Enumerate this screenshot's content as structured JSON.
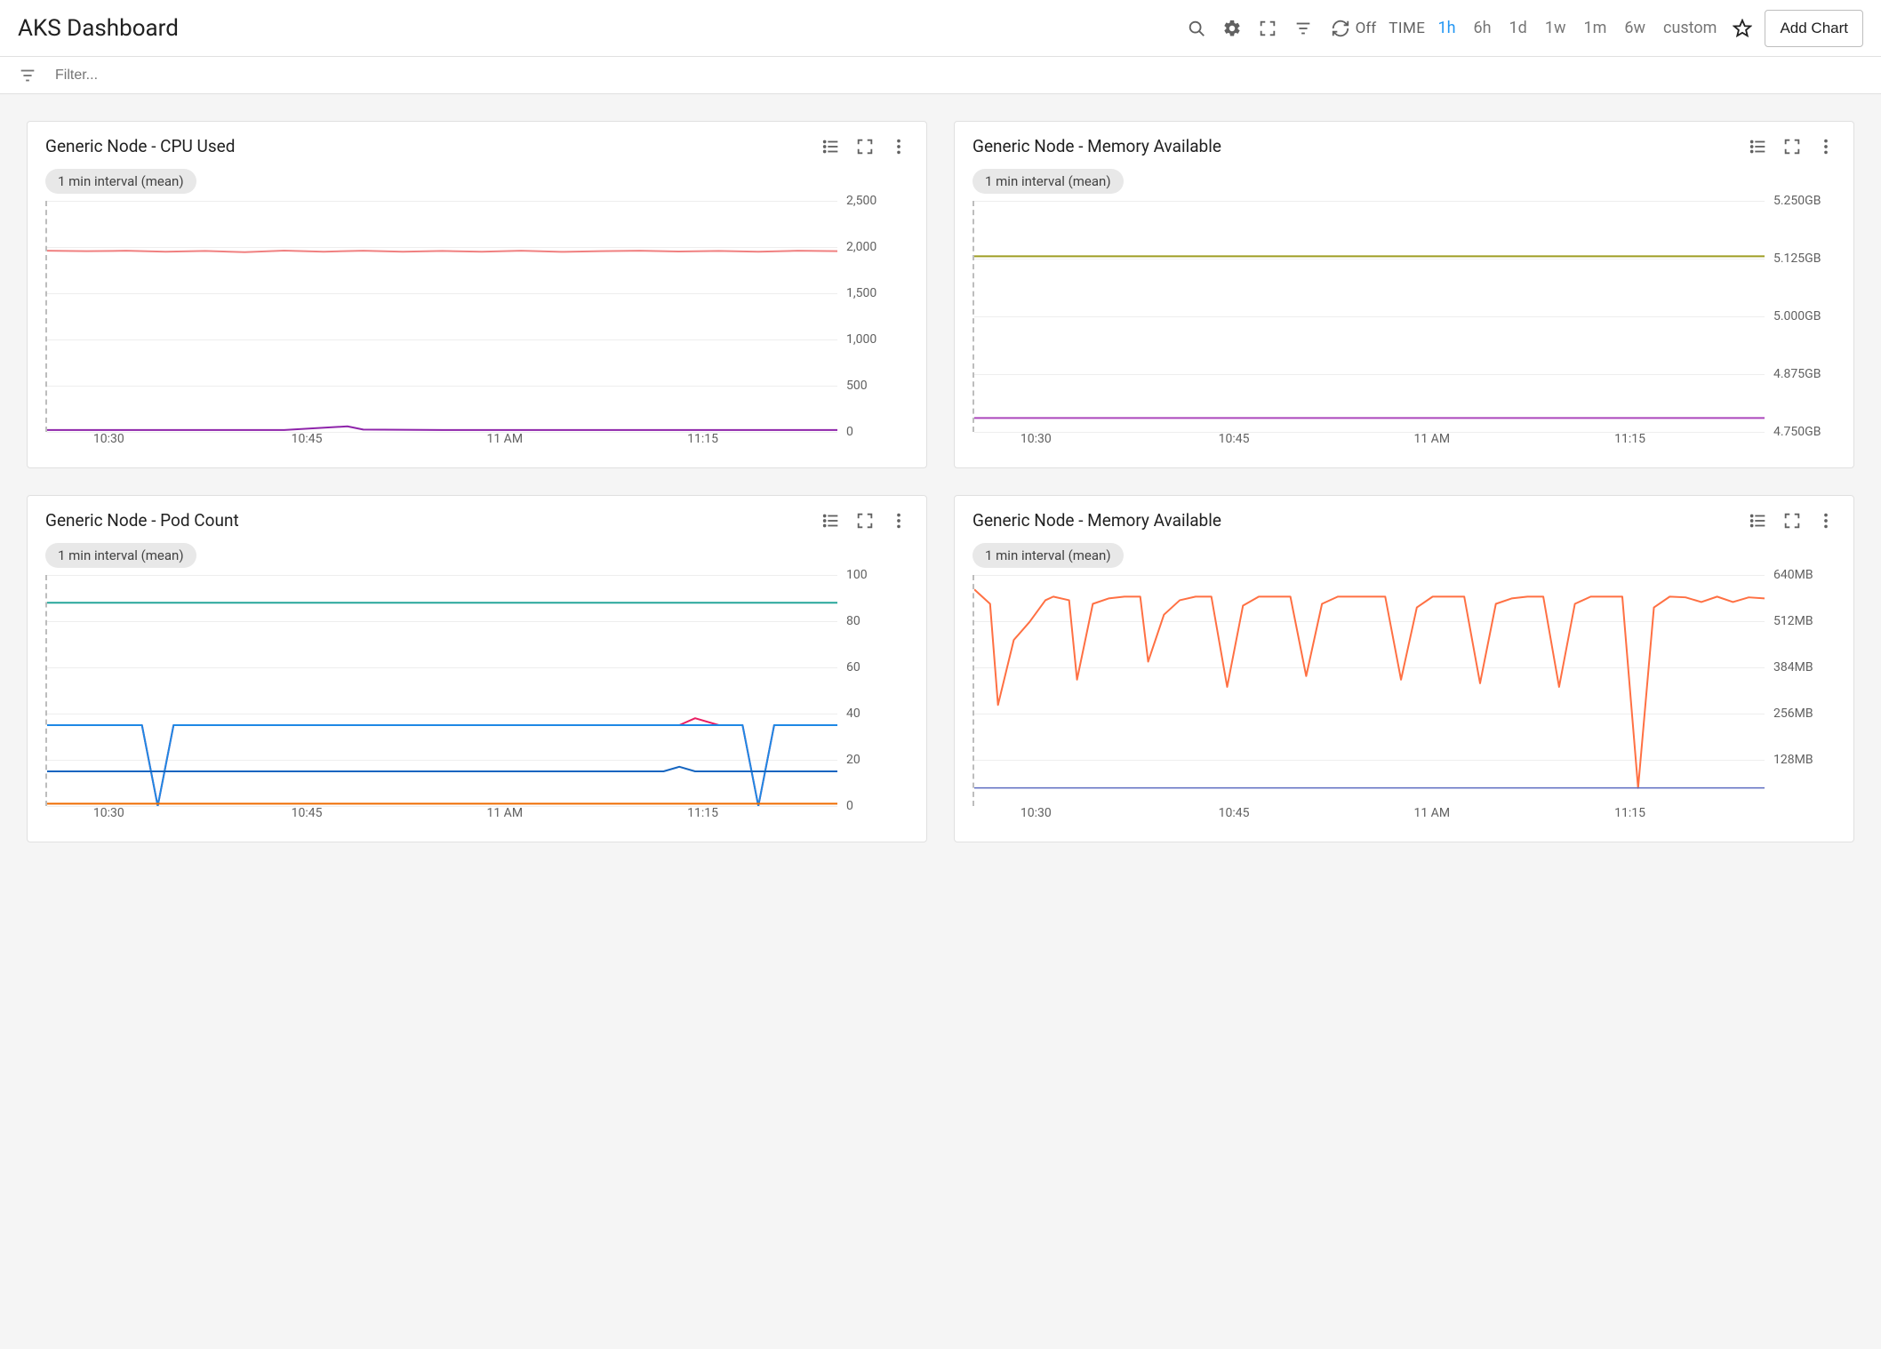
{
  "header": {
    "title": "AKS Dashboard",
    "refresh_label": "Off",
    "time_label": "TIME",
    "time_ranges": [
      "1h",
      "6h",
      "1d",
      "1w",
      "1m",
      "6w",
      "custom"
    ],
    "time_active": "1h",
    "add_chart_label": "Add Chart"
  },
  "filter": {
    "placeholder": "Filter..."
  },
  "interval_pill": "1 min interval (mean)",
  "x_ticks": [
    "10:30",
    "10:45",
    "11 AM",
    "11:15"
  ],
  "x_tick_positions_pct": [
    8,
    33,
    58,
    83
  ],
  "colors": {
    "gridline": "#eeeeee",
    "axis_text": "#616161",
    "dashed": "#bdbdbd",
    "pill_bg": "#e8e8e8"
  },
  "charts": [
    {
      "title": "Generic Node - CPU Used",
      "type": "line",
      "ymin": 0,
      "ymax": 2500,
      "y_ticks": [
        {
          "v": 2500,
          "label": "2,500"
        },
        {
          "v": 2000,
          "label": "2,000"
        },
        {
          "v": 1500,
          "label": "1,500"
        },
        {
          "v": 1000,
          "label": "1,000"
        },
        {
          "v": 500,
          "label": "500"
        },
        {
          "v": 0,
          "label": "0"
        }
      ],
      "series": [
        {
          "color": "#f08080",
          "width": 2,
          "points": [
            [
              0,
              1960
            ],
            [
              5,
              1955
            ],
            [
              10,
              1960
            ],
            [
              15,
              1950
            ],
            [
              20,
              1958
            ],
            [
              25,
              1945
            ],
            [
              30,
              1962
            ],
            [
              35,
              1950
            ],
            [
              40,
              1960
            ],
            [
              45,
              1950
            ],
            [
              50,
              1958
            ],
            [
              55,
              1950
            ],
            [
              60,
              1960
            ],
            [
              65,
              1948
            ],
            [
              70,
              1955
            ],
            [
              75,
              1960
            ],
            [
              80,
              1952
            ],
            [
              85,
              1958
            ],
            [
              90,
              1950
            ],
            [
              95,
              1960
            ],
            [
              100,
              1955
            ]
          ]
        },
        {
          "color": "#8e24aa",
          "width": 2,
          "points": [
            [
              0,
              20
            ],
            [
              10,
              20
            ],
            [
              20,
              20
            ],
            [
              30,
              20
            ],
            [
              38,
              60
            ],
            [
              40,
              25
            ],
            [
              50,
              20
            ],
            [
              60,
              20
            ],
            [
              70,
              20
            ],
            [
              80,
              20
            ],
            [
              90,
              20
            ],
            [
              100,
              20
            ]
          ]
        }
      ]
    },
    {
      "title": "Generic Node - Memory Available",
      "type": "line",
      "ymin": 4.75,
      "ymax": 5.25,
      "y_ticks": [
        {
          "v": 5.25,
          "label": "5.250GB"
        },
        {
          "v": 5.125,
          "label": "5.125GB"
        },
        {
          "v": 5.0,
          "label": "5.000GB"
        },
        {
          "v": 4.875,
          "label": "4.875GB"
        },
        {
          "v": 4.75,
          "label": "4.750GB"
        }
      ],
      "series": [
        {
          "color": "#9e9d24",
          "width": 2,
          "points": [
            [
              0,
              5.13
            ],
            [
              100,
              5.13
            ]
          ]
        },
        {
          "color": "#ab47bc",
          "width": 2,
          "points": [
            [
              0,
              4.78
            ],
            [
              100,
              4.78
            ]
          ]
        }
      ]
    },
    {
      "title": "Generic Node - Pod Count",
      "type": "line",
      "ymin": 0,
      "ymax": 100,
      "y_ticks": [
        {
          "v": 100,
          "label": "100"
        },
        {
          "v": 80,
          "label": "80"
        },
        {
          "v": 60,
          "label": "60"
        },
        {
          "v": 40,
          "label": "40"
        },
        {
          "v": 20,
          "label": "20"
        },
        {
          "v": 0,
          "label": "0"
        }
      ],
      "series": [
        {
          "color": "#26a69a",
          "width": 2,
          "points": [
            [
              0,
              88
            ],
            [
              100,
              88
            ]
          ]
        },
        {
          "color": "#e91e63",
          "width": 2,
          "points": [
            [
              0,
              35
            ],
            [
              12,
              35
            ],
            [
              14,
              0
            ],
            [
              16,
              35
            ],
            [
              80,
              35
            ],
            [
              82,
              38
            ],
            [
              85,
              35
            ],
            [
              88,
              35
            ],
            [
              90,
              0
            ],
            [
              92,
              35
            ],
            [
              100,
              35
            ]
          ]
        },
        {
          "color": "#1e88e5",
          "width": 2,
          "points": [
            [
              0,
              35
            ],
            [
              12,
              35
            ],
            [
              14,
              0
            ],
            [
              16,
              35
            ],
            [
              85,
              35
            ],
            [
              88,
              35
            ],
            [
              90,
              0
            ],
            [
              92,
              35
            ],
            [
              100,
              35
            ]
          ]
        },
        {
          "color": "#1565c0",
          "width": 2,
          "points": [
            [
              0,
              15
            ],
            [
              78,
              15
            ],
            [
              80,
              17
            ],
            [
              82,
              15
            ],
            [
              100,
              15
            ]
          ]
        },
        {
          "color": "#ef6c00",
          "width": 2,
          "points": [
            [
              0,
              1
            ],
            [
              100,
              1
            ]
          ]
        }
      ]
    },
    {
      "title": "Generic Node - Memory Available",
      "type": "line",
      "ymin": 0,
      "ymax": 640,
      "y_ticks": [
        {
          "v": 640,
          "label": "640MB"
        },
        {
          "v": 512,
          "label": "512MB"
        },
        {
          "v": 384,
          "label": "384MB"
        },
        {
          "v": 256,
          "label": "256MB"
        },
        {
          "v": 128,
          "label": "128MB"
        }
      ],
      "series": [
        {
          "color": "#ff7043",
          "width": 2,
          "points": [
            [
              0,
              600
            ],
            [
              2,
              560
            ],
            [
              3,
              280
            ],
            [
              5,
              460
            ],
            [
              7,
              510
            ],
            [
              9,
              570
            ],
            [
              10,
              580
            ],
            [
              12,
              570
            ],
            [
              13,
              350
            ],
            [
              15,
              560
            ],
            [
              17,
              575
            ],
            [
              19,
              580
            ],
            [
              21,
              580
            ],
            [
              22,
              400
            ],
            [
              24,
              530
            ],
            [
              26,
              570
            ],
            [
              28,
              580
            ],
            [
              30,
              580
            ],
            [
              32,
              330
            ],
            [
              34,
              555
            ],
            [
              36,
              580
            ],
            [
              38,
              580
            ],
            [
              40,
              580
            ],
            [
              42,
              360
            ],
            [
              44,
              560
            ],
            [
              46,
              580
            ],
            [
              48,
              580
            ],
            [
              50,
              580
            ],
            [
              52,
              580
            ],
            [
              54,
              350
            ],
            [
              56,
              550
            ],
            [
              58,
              580
            ],
            [
              60,
              580
            ],
            [
              62,
              580
            ],
            [
              64,
              340
            ],
            [
              66,
              560
            ],
            [
              68,
              575
            ],
            [
              70,
              580
            ],
            [
              72,
              580
            ],
            [
              74,
              330
            ],
            [
              76,
              560
            ],
            [
              78,
              580
            ],
            [
              80,
              580
            ],
            [
              82,
              580
            ],
            [
              84,
              50
            ],
            [
              86,
              550
            ],
            [
              88,
              580
            ],
            [
              90,
              578
            ],
            [
              92,
              565
            ],
            [
              94,
              580
            ],
            [
              96,
              565
            ],
            [
              98,
              578
            ],
            [
              100,
              575
            ]
          ]
        },
        {
          "color": "#5c6bc0",
          "width": 1.5,
          "points": [
            [
              0,
              50
            ],
            [
              100,
              50
            ]
          ]
        }
      ]
    }
  ]
}
